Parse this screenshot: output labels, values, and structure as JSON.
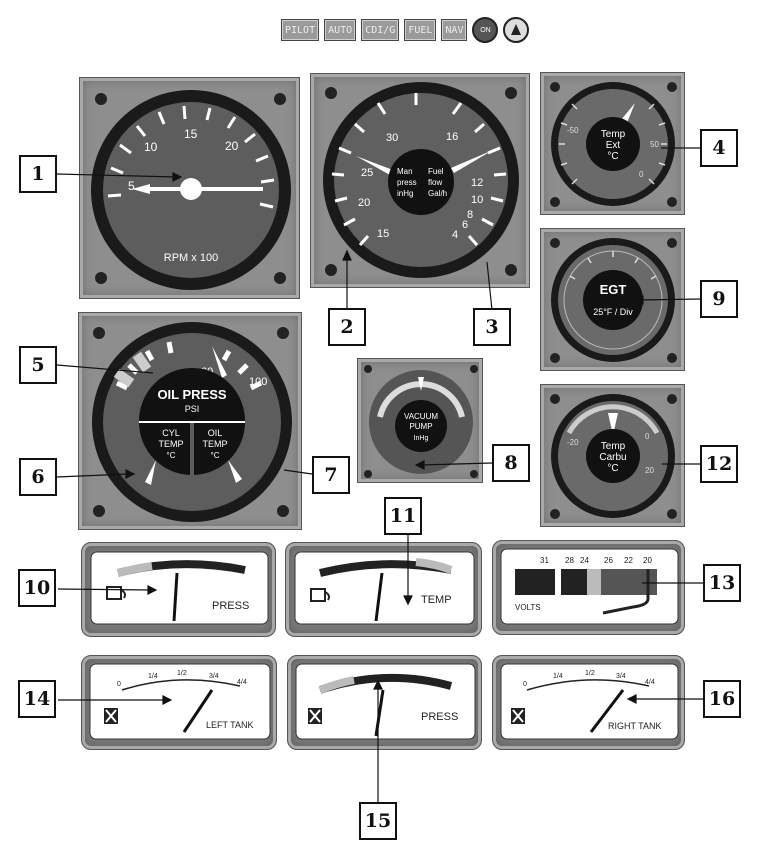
{
  "toolbar": {
    "buttons": [
      "PILOT",
      "AUTO",
      "CDI/G",
      "FUEL",
      "NAV"
    ],
    "icon_left": "power-knob-icon",
    "icon_left_label": "ON",
    "icon_right": "beacon-icon"
  },
  "callouts": [
    "1",
    "2",
    "3",
    "4",
    "5",
    "6",
    "7",
    "8",
    "9",
    "10",
    "11",
    "12",
    "13",
    "14",
    "15",
    "16"
  ],
  "tachometer": {
    "ticks": [
      "5",
      "10",
      "15",
      "20"
    ],
    "label": "RPM x 100",
    "needle_value": 3
  },
  "manifold_fuel": {
    "left_label_1": "Man",
    "left_label_2": "press",
    "left_label_3": "inHg",
    "right_label_1": "Fuel",
    "right_label_2": "flow",
    "right_label_3": "Gal/h",
    "left_ticks": [
      "30",
      "25",
      "20",
      "15"
    ],
    "right_ticks": [
      "16",
      "12",
      "10",
      "8",
      "6",
      "4"
    ]
  },
  "temp_ext": {
    "line1": "Temp",
    "line2": "Ext",
    "line3": "°C",
    "ticks": [
      "50",
      "-50",
      "0"
    ]
  },
  "egt": {
    "line1": "EGT",
    "line2": "25°F / Div"
  },
  "temp_carbu": {
    "line1": "Temp",
    "line2": "Carbu",
    "line3": "°C",
    "ticks": [
      "20",
      "0",
      "-20"
    ]
  },
  "oil_press": {
    "title": "OIL PRESS",
    "unit": "PSI",
    "left_1": "CYL",
    "left_2": "TEMP",
    "left_3": "°C",
    "right_1": "OIL",
    "right_2": "TEMP",
    "right_3": "°C",
    "ticks": [
      "60",
      "100"
    ]
  },
  "vacuum": {
    "line1": "VACUUM",
    "line2": "PUMP",
    "line3": "InHg"
  },
  "oil_press_gauge": {
    "label": "PRESS"
  },
  "oil_temp_gauge": {
    "label": "TEMP"
  },
  "volts": {
    "label": "VOLTS",
    "ticks": [
      "31",
      "28",
      "24",
      "26",
      "22",
      "20"
    ]
  },
  "left_tank": {
    "label": "LEFT TANK",
    "ticks": [
      "0",
      "1/4",
      "1/2",
      "3/4",
      "4/4"
    ]
  },
  "fuel_press": {
    "label": "PRESS"
  },
  "right_tank": {
    "label": "RIGHT TANK",
    "ticks": [
      "0",
      "1/4",
      "1/2",
      "3/4",
      "4/4"
    ]
  },
  "colors": {
    "panel": "#8e8e8e",
    "face": "#555555",
    "bezel": "#1a1a1a",
    "callout_border": "#111111"
  }
}
